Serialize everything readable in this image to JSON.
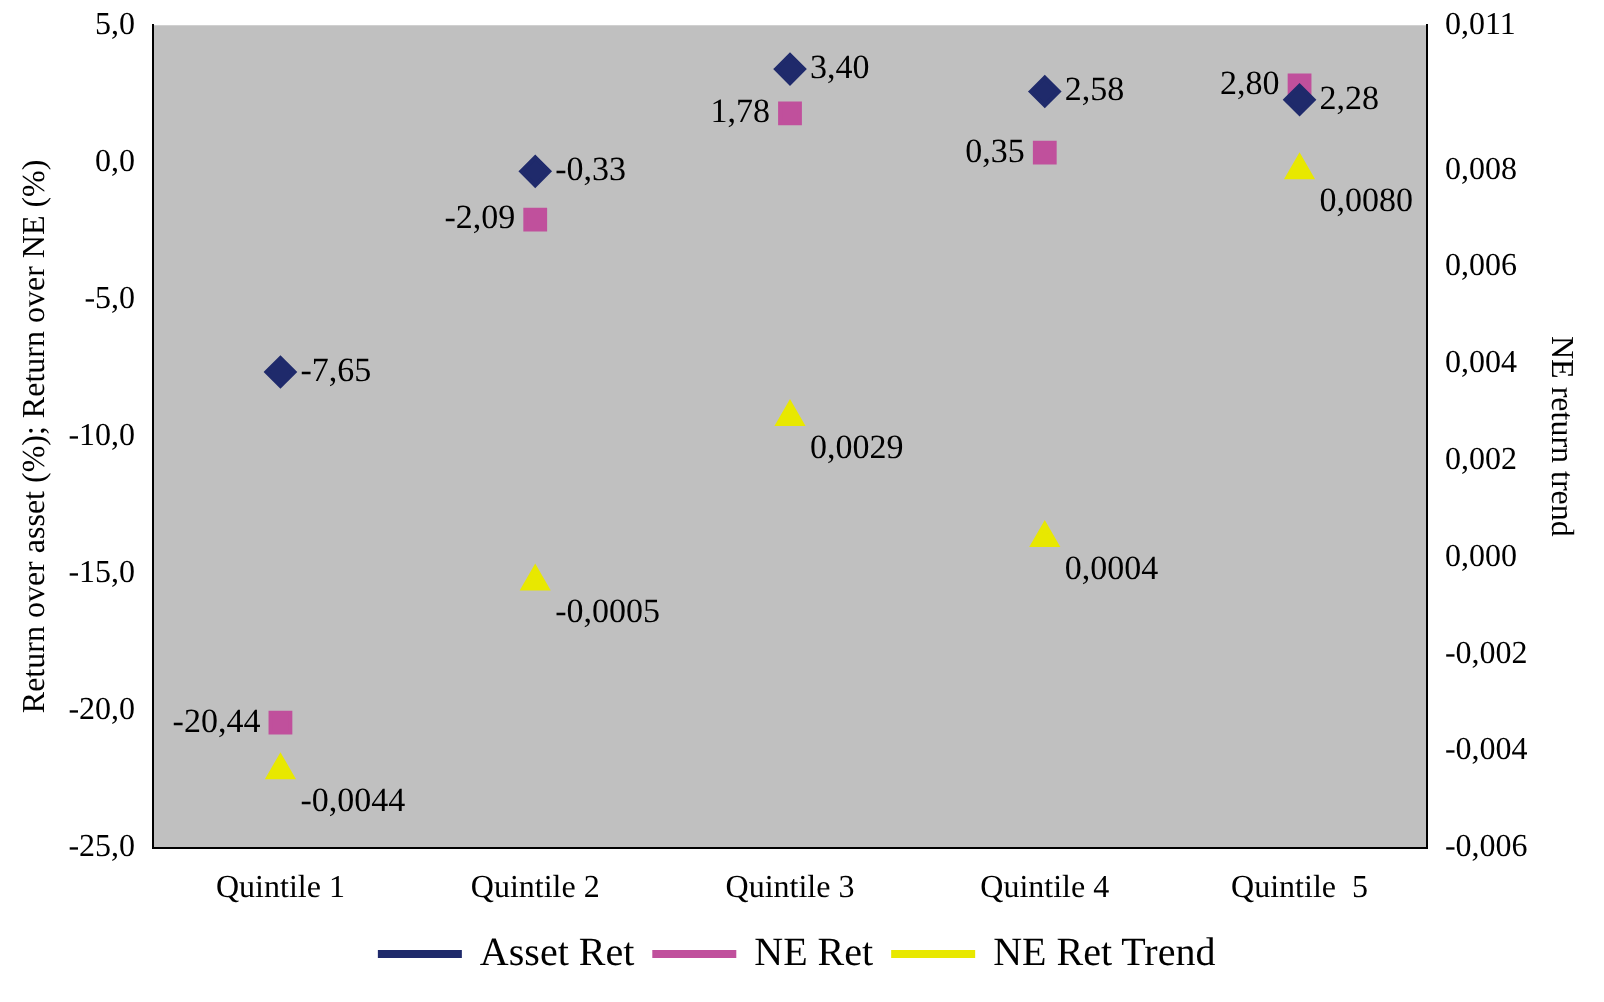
{
  "chart_data": {
    "type": "scatter",
    "categories": [
      "Quintile 1",
      "Quintile 2",
      "Quintile 3",
      "Quintile 4",
      "Quintile  5"
    ],
    "ylabel": "Return over asset (%); Return over NE (%)",
    "y2label": "NE return trend",
    "ylim": [
      -25,
      5
    ],
    "yticks": [
      {
        "value": -25,
        "label": "-25,0"
      },
      {
        "value": -20,
        "label": "-20,0"
      },
      {
        "value": -15,
        "label": "-15,0"
      },
      {
        "value": -10,
        "label": "-10,0"
      },
      {
        "value": -5,
        "label": "-5,0"
      },
      {
        "value": 0,
        "label": "0,0"
      },
      {
        "value": 5,
        "label": "5,0"
      }
    ],
    "y2lim": [
      -0.006,
      0.011
    ],
    "y2ticks": [
      {
        "value": -0.006,
        "label": "-0,006"
      },
      {
        "value": -0.004,
        "label": "-0,004"
      },
      {
        "value": -0.002,
        "label": "-0,002"
      },
      {
        "value": 0,
        "label": "0,000"
      },
      {
        "value": 0.002,
        "label": "0,002"
      },
      {
        "value": 0.004,
        "label": "0,004"
      },
      {
        "value": 0.006,
        "label": "0,006"
      },
      {
        "value": 0.008,
        "label": "0,008"
      },
      {
        "value": 0.011,
        "label": "0,011"
      }
    ],
    "grid": false,
    "legend": "bottom",
    "series": [
      {
        "name": "Asset Ret",
        "color": "#1f2a6b",
        "marker": "diamond",
        "values": [
          -7.65,
          -0.33,
          3.4,
          2.58,
          2.28
        ],
        "value_labels": [
          "-7,65",
          "-0,33",
          "3,40",
          "2,58",
          "2,28"
        ]
      },
      {
        "name": "NE Ret",
        "color": "#c0509c",
        "marker": "square",
        "values": [
          -20.44,
          -2.09,
          1.78,
          0.35,
          2.8
        ],
        "value_labels": [
          "-20,44",
          "-2,09",
          "1,78",
          "0,35",
          "2,80"
        ]
      },
      {
        "name": "NE Ret Trend",
        "color": "#e8e800",
        "marker": "triangle",
        "axis": "y2",
        "values": [
          -0.0044,
          -0.0005,
          0.0029,
          0.0004,
          0.008
        ],
        "value_labels": [
          "-0,0044",
          "-0,0005",
          "0,0029",
          "0,0004",
          "0,0080"
        ]
      }
    ]
  }
}
